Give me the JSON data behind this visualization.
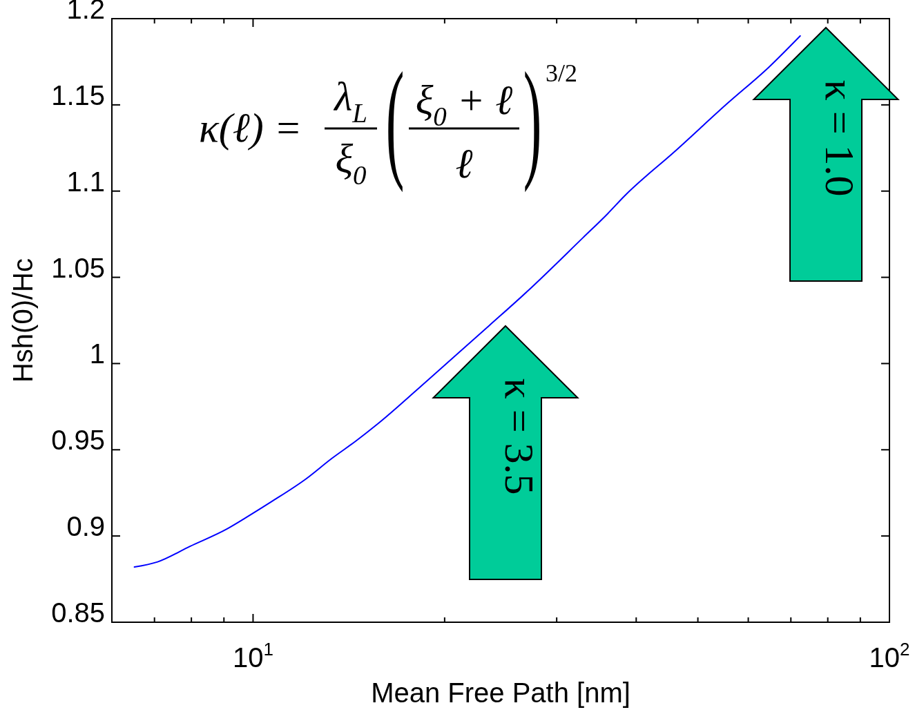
{
  "chart_data": {
    "type": "line",
    "xlabel": "Mean Free Path [nm]",
    "ylabel": "Hsh(0)/Hc",
    "x": [
      6.51,
      7.08,
      7.96,
      9.09,
      9.88,
      10.7,
      12.1,
      13.3,
      14.5,
      15.7,
      18.9,
      23.5,
      27,
      33,
      36.1,
      38.3,
      46,
      55.7,
      64.7,
      72.4
    ],
    "values": [
      0.882,
      0.885,
      0.894,
      0.904,
      0.912,
      0.92,
      0.933,
      0.945,
      0.955,
      0.965,
      0.991,
      1.022,
      1.042,
      1.073,
      1.087,
      1.097,
      1.123,
      1.151,
      1.172,
      1.19
    ],
    "color": "#0000ff",
    "line_style": "solid",
    "log": "x",
    "xlim": [
      6,
      100
    ],
    "ylim": [
      0.85,
      1.2
    ],
    "xticks": [
      {
        "value": 7,
        "label": null
      },
      {
        "value": 8,
        "label": null
      },
      {
        "value": 9,
        "label": null
      },
      {
        "value": 10,
        "label": "10$^{1}$"
      },
      {
        "value": 20,
        "label": null
      },
      {
        "value": 30,
        "label": null
      },
      {
        "value": 40,
        "label": null
      },
      {
        "value": 50,
        "label": null
      },
      {
        "value": 60,
        "label": null
      },
      {
        "value": 70,
        "label": null
      },
      {
        "value": 80,
        "label": null
      },
      {
        "value": 90,
        "label": null
      },
      {
        "value": 100,
        "label": "10$^{2}$"
      }
    ],
    "yticks": [
      0.85,
      0.9,
      0.95,
      1,
      1.05,
      1.1,
      1.15,
      1.2
    ],
    "annotations": [
      "κ(ℓ) =",
      "λ$_{L}$",
      "ξ$_{0}$",
      "(",
      "ξ$_{0}$ + ℓ",
      "ℓ",
      ")",
      "3/2",
      "κ = 3.5",
      "κ = 1.0"
    ]
  }
}
